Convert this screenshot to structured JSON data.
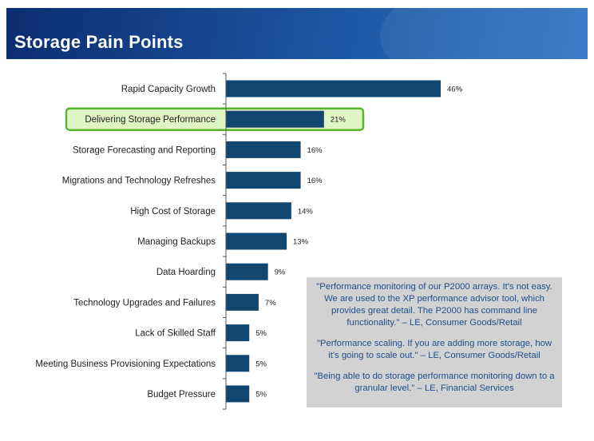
{
  "title": "Storage Pain Points",
  "highlight_color": "#59b52f",
  "highlight_fill": "#dff5c4",
  "bar_color": "#10466f",
  "chart_data": {
    "type": "bar",
    "orientation": "horizontal",
    "title": "",
    "xlabel": "",
    "ylabel": "",
    "xlim": [
      0,
      46
    ],
    "grid": false,
    "categories": [
      "Rapid Capacity Growth",
      "Delivering Storage Performance",
      "Storage Forecasting and Reporting",
      "Migrations and Technology Refreshes",
      "High Cost of Storage",
      "Managing Backups",
      "Data Hoarding",
      "Technology Upgrades and Failures",
      "Lack of Skilled Staff",
      "Meeting Business Provisioning Expectations",
      "Budget Pressure"
    ],
    "values": [
      46,
      21,
      16,
      16,
      14,
      13,
      9,
      7,
      5,
      5,
      5
    ],
    "value_labels": [
      "46%",
      "21%",
      "16%",
      "16%",
      "14%",
      "13%",
      "9%",
      "7%",
      "5%",
      "5%",
      "5%"
    ],
    "highlighted_category": "Delivering Storage Performance"
  },
  "quotes": [
    "\"Performance monitoring of our P2000 arrays. It's not easy. We are used to the XP performance advisor tool, which provides great detail. The P2000 has command line functionality.\" – LE, Consumer Goods/Retail",
    "\"Performance scaling. If you are adding more storage, how it's going to scale out.\" – LE, Consumer Goods/Retail",
    "\"Being able to do storage performance monitoring down to a granular level.\" – LE, Financial Services"
  ]
}
